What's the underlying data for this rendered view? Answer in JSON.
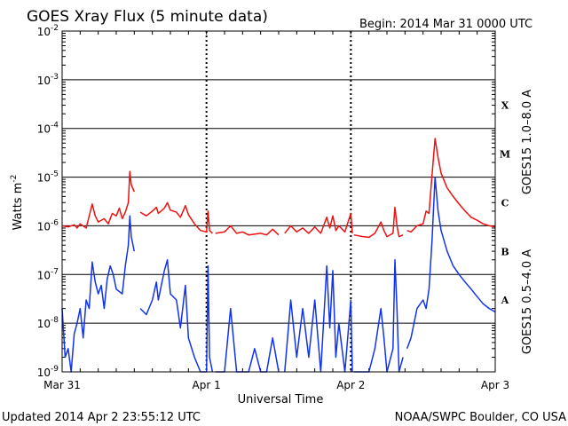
{
  "header": {
    "title": "GOES Xray Flux (5 minute data)",
    "begin": "Begin:  2014 Mar 31 0000 UTC"
  },
  "footer": {
    "updated": "Updated 2014 Apr  2 23:55:12 UTC",
    "source": "NOAA/SWPC Boulder, CO USA"
  },
  "chart_data": {
    "type": "line",
    "ylabel": "Watts m",
    "ylabel_sup": "-2",
    "xlabel": "Universal Time",
    "y_scale": "log",
    "ylim": [
      1e-09,
      0.01
    ],
    "y_ticks": [
      {
        "base": "10",
        "exp": "-9",
        "value": 1e-09
      },
      {
        "base": "10",
        "exp": "-8",
        "value": 1e-08
      },
      {
        "base": "10",
        "exp": "-7",
        "value": 1e-07
      },
      {
        "base": "10",
        "exp": "-6",
        "value": 1e-06
      },
      {
        "base": "10",
        "exp": "-5",
        "value": 1e-05
      },
      {
        "base": "10",
        "exp": "-4",
        "value": 0.0001
      },
      {
        "base": "10",
        "exp": "-3",
        "value": 0.001
      },
      {
        "base": "10",
        "exp": "-2",
        "value": 0.01
      }
    ],
    "xlim": [
      "2014-03-31T00:00",
      "2014-04-03T00:00"
    ],
    "x_ticks": [
      {
        "label": "Mar 31",
        "value": "2014-03-31T00:00"
      },
      {
        "label": "Apr 1",
        "value": "2014-04-01T00:00"
      },
      {
        "label": "Apr 2",
        "value": "2014-04-02T00:00"
      },
      {
        "label": "Apr 3",
        "value": "2014-04-03T00:00"
      }
    ],
    "flare_classes": [
      {
        "label": "X",
        "value": 0.0001
      },
      {
        "label": "M",
        "value": 1e-05
      },
      {
        "label": "C",
        "value": 1e-06
      },
      {
        "label": "B",
        "value": 1e-07
      },
      {
        "label": "A",
        "value": 1e-08
      }
    ],
    "grid": "horizontal at each decade; dotted vertical at day boundaries",
    "series": [
      {
        "name": "GOES15 1.0–8.0 A",
        "color": "#ee1111",
        "segments": [
          [
            [
              "2014-03-31T00:00",
              1e-06
            ],
            [
              "2014-03-31T01:00",
              9.5e-07
            ],
            [
              "2014-03-31T02:00",
              1.05e-06
            ],
            [
              "2014-03-31T02:30",
              9e-07
            ],
            [
              "2014-03-31T03:00",
              1.1e-06
            ],
            [
              "2014-03-31T04:00",
              9e-07
            ],
            [
              "2014-03-31T05:00",
              2.8e-06
            ],
            [
              "2014-03-31T05:30",
              1.6e-06
            ],
            [
              "2014-03-31T06:00",
              1.2e-06
            ],
            [
              "2014-03-31T07:00",
              1.4e-06
            ],
            [
              "2014-03-31T07:40",
              1.1e-06
            ],
            [
              "2014-03-31T08:20",
              1.8e-06
            ],
            [
              "2014-03-31T09:00",
              1.6e-06
            ],
            [
              "2014-03-31T09:30",
              2.3e-06
            ],
            [
              "2014-03-31T10:00",
              1.4e-06
            ],
            [
              "2014-03-31T10:30",
              1.9e-06
            ],
            [
              "2014-03-31T11:00",
              3e-06
            ],
            [
              "2014-03-31T11:15",
              1.3e-05
            ],
            [
              "2014-03-31T11:30",
              7e-06
            ],
            [
              "2014-03-31T12:00",
              5e-06
            ]
          ],
          [
            [
              "2014-03-31T13:00",
              1.9e-06
            ],
            [
              "2014-03-31T14:00",
              1.6e-06
            ],
            [
              "2014-03-31T15:00",
              2e-06
            ],
            [
              "2014-03-31T15:40",
              2.4e-06
            ],
            [
              "2014-03-31T16:00",
              1.8e-06
            ],
            [
              "2014-03-31T17:00",
              2.3e-06
            ],
            [
              "2014-03-31T17:30",
              3e-06
            ],
            [
              "2014-03-31T18:00",
              2.1e-06
            ],
            [
              "2014-03-31T19:00",
              1.9e-06
            ],
            [
              "2014-03-31T19:40",
              1.5e-06
            ],
            [
              "2014-03-31T20:30",
              2.6e-06
            ],
            [
              "2014-03-31T21:00",
              1.7e-06
            ],
            [
              "2014-03-31T22:00",
              1.1e-06
            ],
            [
              "2014-03-31T23:00",
              8e-07
            ],
            [
              "2014-04-01T00:00",
              7.5e-07
            ],
            [
              "2014-04-01T00:15",
              2e-06
            ],
            [
              "2014-04-01T00:30",
              8e-07
            ],
            [
              "2014-04-01T01:00",
              7e-07
            ]
          ],
          [
            [
              "2014-04-01T01:30",
              7e-07
            ],
            [
              "2014-04-01T03:00",
              7.5e-07
            ],
            [
              "2014-04-01T04:00",
              1e-06
            ],
            [
              "2014-04-01T05:00",
              7e-07
            ],
            [
              "2014-04-01T06:00",
              7.5e-07
            ],
            [
              "2014-04-01T07:00",
              6.5e-07
            ],
            [
              "2014-04-01T09:00",
              7e-07
            ],
            [
              "2014-04-01T10:00",
              6.5e-07
            ],
            [
              "2014-04-01T11:00",
              8.5e-07
            ],
            [
              "2014-04-01T12:00",
              6.5e-07
            ]
          ],
          [
            [
              "2014-04-01T13:00",
              7e-07
            ],
            [
              "2014-04-01T14:00",
              1e-06
            ],
            [
              "2014-04-01T15:00",
              7.5e-07
            ],
            [
              "2014-04-01T16:00",
              9e-07
            ],
            [
              "2014-04-01T17:00",
              7e-07
            ],
            [
              "2014-04-01T18:00",
              9.5e-07
            ],
            [
              "2014-04-01T19:00",
              7e-07
            ],
            [
              "2014-04-01T20:00",
              1.5e-06
            ],
            [
              "2014-04-01T20:30",
              9e-07
            ],
            [
              "2014-04-01T21:00",
              1.6e-06
            ],
            [
              "2014-04-01T21:30",
              8e-07
            ],
            [
              "2014-04-01T22:00",
              1e-06
            ],
            [
              "2014-04-01T23:00",
              7.5e-07
            ],
            [
              "2014-04-02T00:00",
              1.8e-06
            ],
            [
              "2014-04-02T00:15",
              7e-07
            ]
          ],
          [
            [
              "2014-04-02T00:30",
              6.5e-07
            ],
            [
              "2014-04-02T02:00",
              6e-07
            ],
            [
              "2014-04-02T03:00",
              5.8e-07
            ],
            [
              "2014-04-02T04:00",
              7e-07
            ],
            [
              "2014-04-02T05:00",
              1.2e-06
            ],
            [
              "2014-04-02T05:30",
              8e-07
            ],
            [
              "2014-04-02T06:00",
              6e-07
            ],
            [
              "2014-04-02T07:00",
              7e-07
            ],
            [
              "2014-04-02T07:20",
              2.4e-06
            ],
            [
              "2014-04-02T07:40",
              1e-06
            ],
            [
              "2014-04-02T08:00",
              6e-07
            ],
            [
              "2014-04-02T08:40",
              6.5e-07
            ]
          ],
          [
            [
              "2014-04-02T09:20",
              8e-07
            ],
            [
              "2014-04-02T10:00",
              7.5e-07
            ],
            [
              "2014-04-02T11:00",
              1e-06
            ],
            [
              "2014-04-02T12:00",
              1.1e-06
            ],
            [
              "2014-04-02T12:30",
              2e-06
            ],
            [
              "2014-04-02T13:00",
              1.8e-06
            ],
            [
              "2014-04-02T13:30",
              1.1e-05
            ],
            [
              "2014-04-02T14:00",
              6.2e-05
            ],
            [
              "2014-04-02T14:30",
              2.5e-05
            ],
            [
              "2014-04-02T15:00",
              1.2e-05
            ],
            [
              "2014-04-02T16:00",
              6e-06
            ],
            [
              "2014-04-02T17:00",
              4e-06
            ],
            [
              "2014-04-02T18:00",
              2.8e-06
            ],
            [
              "2014-04-02T19:00",
              2e-06
            ],
            [
              "2014-04-02T20:00",
              1.5e-06
            ],
            [
              "2014-04-02T21:00",
              1.3e-06
            ],
            [
              "2014-04-02T22:00",
              1.1e-06
            ],
            [
              "2014-04-02T23:00",
              1e-06
            ],
            [
              "2014-04-03T00:00",
              9.5e-07
            ]
          ]
        ]
      },
      {
        "name": "GOES15 0.5–4.0 A",
        "color": "#1133ee",
        "segments": [
          [
            [
              "2014-03-31T00:00",
              2e-08
            ],
            [
              "2014-03-31T00:30",
              2e-09
            ],
            [
              "2014-03-31T01:00",
              3e-09
            ],
            [
              "2014-03-31T01:30",
              1e-09
            ],
            [
              "2014-03-31T02:00",
              6e-09
            ],
            [
              "2014-03-31T02:30",
              1e-08
            ],
            [
              "2014-03-31T03:00",
              2e-08
            ],
            [
              "2014-03-31T03:30",
              5e-09
            ],
            [
              "2014-03-31T04:00",
              3e-08
            ],
            [
              "2014-03-31T04:30",
              2e-08
            ],
            [
              "2014-03-31T05:00",
              1.8e-07
            ],
            [
              "2014-03-31T05:30",
              7e-08
            ],
            [
              "2014-03-31T06:00",
              4e-08
            ],
            [
              "2014-03-31T06:30",
              6e-08
            ],
            [
              "2014-03-31T07:00",
              2e-08
            ],
            [
              "2014-03-31T07:30",
              8e-08
            ],
            [
              "2014-03-31T08:00",
              1.5e-07
            ],
            [
              "2014-03-31T08:30",
              1e-07
            ],
            [
              "2014-03-31T09:00",
              5e-08
            ],
            [
              "2014-03-31T10:00",
              4e-08
            ],
            [
              "2014-03-31T10:30",
              1.5e-07
            ],
            [
              "2014-03-31T11:00",
              4e-07
            ],
            [
              "2014-03-31T11:15",
              1.6e-06
            ],
            [
              "2014-03-31T11:30",
              6e-07
            ],
            [
              "2014-03-31T12:00",
              3e-07
            ]
          ],
          [
            [
              "2014-03-31T13:00",
              2e-08
            ],
            [
              "2014-03-31T14:00",
              1.5e-08
            ],
            [
              "2014-03-31T15:00",
              3e-08
            ],
            [
              "2014-03-31T15:40",
              7e-08
            ],
            [
              "2014-03-31T16:00",
              3e-08
            ],
            [
              "2014-03-31T17:00",
              1.2e-07
            ],
            [
              "2014-03-31T17:30",
              2e-07
            ],
            [
              "2014-03-31T18:00",
              4e-08
            ],
            [
              "2014-03-31T19:00",
              3e-08
            ],
            [
              "2014-03-31T19:40",
              8e-09
            ],
            [
              "2014-03-31T20:30",
              6e-08
            ],
            [
              "2014-03-31T21:00",
              5e-09
            ],
            [
              "2014-03-31T22:00",
              2e-09
            ],
            [
              "2014-03-31T23:00",
              1e-09
            ],
            [
              "2014-04-01T00:00",
              1e-09
            ],
            [
              "2014-04-01T00:15",
              1.5e-07
            ],
            [
              "2014-04-01T00:30",
              2e-09
            ],
            [
              "2014-04-01T01:00",
              1e-09
            ]
          ],
          [
            [
              "2014-04-01T01:30",
              1e-09
            ],
            [
              "2014-04-01T03:00",
              1e-09
            ],
            [
              "2014-04-01T04:00",
              2e-08
            ],
            [
              "2014-04-01T05:00",
              1e-09
            ],
            [
              "2014-04-01T06:00",
              1e-09
            ],
            [
              "2014-04-01T07:00",
              1e-09
            ],
            [
              "2014-04-01T08:00",
              3e-09
            ],
            [
              "2014-04-01T09:00",
              1e-09
            ],
            [
              "2014-04-01T10:00",
              1e-09
            ],
            [
              "2014-04-01T11:00",
              5e-09
            ],
            [
              "2014-04-01T12:00",
              1e-09
            ]
          ],
          [
            [
              "2014-04-01T13:00",
              1e-09
            ],
            [
              "2014-04-01T14:00",
              3e-08
            ],
            [
              "2014-04-01T15:00",
              2e-09
            ],
            [
              "2014-04-01T16:00",
              2e-08
            ],
            [
              "2014-04-01T17:00",
              2e-09
            ],
            [
              "2014-04-01T18:00",
              3e-08
            ],
            [
              "2014-04-01T19:00",
              1e-09
            ],
            [
              "2014-04-01T20:00",
              1.5e-07
            ],
            [
              "2014-04-01T20:30",
              8e-09
            ],
            [
              "2014-04-01T21:00",
              1.2e-07
            ],
            [
              "2014-04-01T21:30",
              2e-09
            ],
            [
              "2014-04-01T22:00",
              1e-08
            ],
            [
              "2014-04-01T23:00",
              1e-09
            ],
            [
              "2014-04-02T00:00",
              3e-08
            ],
            [
              "2014-04-02T00:15",
              1e-09
            ]
          ],
          [
            [
              "2014-04-02T00:30",
              1e-09
            ],
            [
              "2014-04-02T02:00",
              1e-09
            ],
            [
              "2014-04-02T03:00",
              1e-09
            ],
            [
              "2014-04-02T04:00",
              3e-09
            ],
            [
              "2014-04-02T05:00",
              2e-08
            ],
            [
              "2014-04-02T05:30",
              5e-09
            ],
            [
              "2014-04-02T06:00",
              1e-09
            ],
            [
              "2014-04-02T07:00",
              3e-09
            ],
            [
              "2014-04-02T07:20",
              2e-07
            ],
            [
              "2014-04-02T07:40",
              2e-08
            ],
            [
              "2014-04-02T08:00",
              1e-09
            ],
            [
              "2014-04-02T08:40",
              2e-09
            ]
          ],
          [
            [
              "2014-04-02T09:20",
              3e-09
            ],
            [
              "2014-04-02T10:00",
              5e-09
            ],
            [
              "2014-04-02T11:00",
              2e-08
            ],
            [
              "2014-04-02T12:00",
              3e-08
            ],
            [
              "2014-04-02T12:30",
              2e-08
            ],
            [
              "2014-04-02T13:00",
              5e-08
            ],
            [
              "2014-04-02T13:30",
              5e-07
            ],
            [
              "2014-04-02T14:00",
              1e-05
            ],
            [
              "2014-04-02T14:30",
              2e-06
            ],
            [
              "2014-04-02T15:00",
              8e-07
            ],
            [
              "2014-04-02T16:00",
              3e-07
            ],
            [
              "2014-04-02T17:00",
              1.5e-07
            ],
            [
              "2014-04-02T18:00",
              1e-07
            ],
            [
              "2014-04-02T19:00",
              7e-08
            ],
            [
              "2014-04-02T20:00",
              5e-08
            ],
            [
              "2014-04-02T21:00",
              3.5e-08
            ],
            [
              "2014-04-02T22:00",
              2.5e-08
            ],
            [
              "2014-04-02T23:00",
              2e-08
            ],
            [
              "2014-04-03T00:00",
              1.7e-08
            ]
          ]
        ]
      }
    ]
  }
}
